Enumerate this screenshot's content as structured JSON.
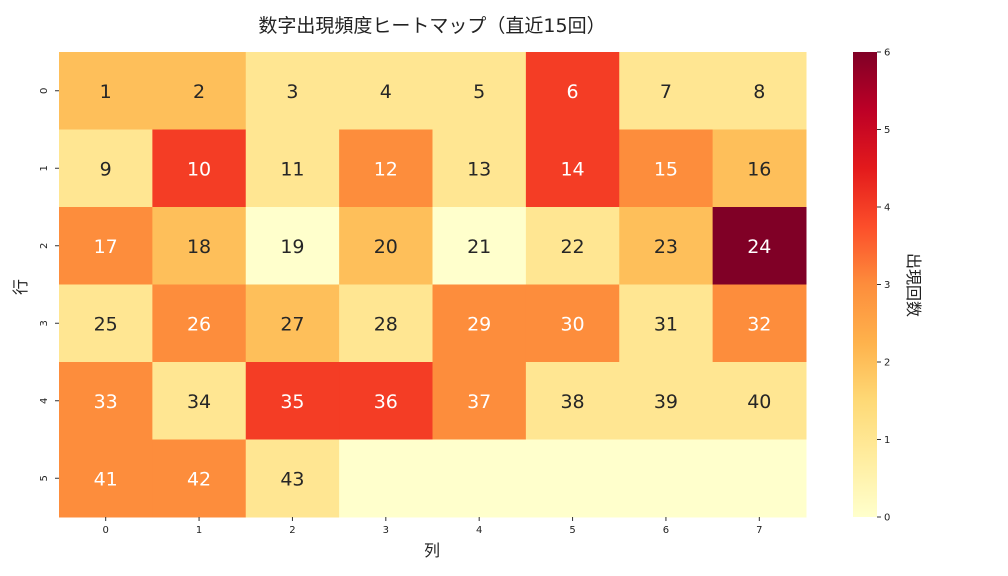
{
  "chart_data": {
    "type": "heatmap",
    "title": "数字出現頻度ヒートマップ（直近15回）",
    "xlabel": "列",
    "ylabel": "行",
    "x_tick_labels": [
      "0",
      "1",
      "2",
      "3",
      "4",
      "5",
      "6",
      "7"
    ],
    "y_tick_labels": [
      "0",
      "1",
      "2",
      "3",
      "4",
      "5"
    ],
    "colormap": "YlOrRd",
    "colormap_stops": [
      "#ffffcc",
      "#ffeda0",
      "#fed976",
      "#feb24c",
      "#fd8d3c",
      "#fc4e2a",
      "#e31a1c",
      "#bd0026",
      "#800026"
    ],
    "value_range": [
      0,
      6
    ],
    "colorbar": {
      "label": "出現回数",
      "ticks": [
        0,
        1,
        2,
        3,
        4,
        5,
        6
      ]
    },
    "numbers": [
      [
        1,
        2,
        3,
        4,
        5,
        6,
        7,
        8
      ],
      [
        9,
        10,
        11,
        12,
        13,
        14,
        15,
        16
      ],
      [
        17,
        18,
        19,
        20,
        21,
        22,
        23,
        24
      ],
      [
        25,
        26,
        27,
        28,
        29,
        30,
        31,
        32
      ],
      [
        33,
        34,
        35,
        36,
        37,
        38,
        39,
        40
      ],
      [
        41,
        42,
        43,
        null,
        null,
        null,
        null,
        null
      ]
    ],
    "counts": [
      [
        2,
        2,
        1,
        1,
        1,
        4,
        1,
        1
      ],
      [
        1,
        4,
        1,
        3,
        1,
        4,
        3,
        2
      ],
      [
        3,
        2,
        0,
        2,
        0,
        1,
        2,
        6
      ],
      [
        1,
        3,
        2,
        1,
        3,
        3,
        1,
        3
      ],
      [
        3,
        1,
        4,
        4,
        3,
        1,
        1,
        1
      ],
      [
        3,
        3,
        1,
        0,
        0,
        0,
        0,
        0
      ]
    ]
  }
}
